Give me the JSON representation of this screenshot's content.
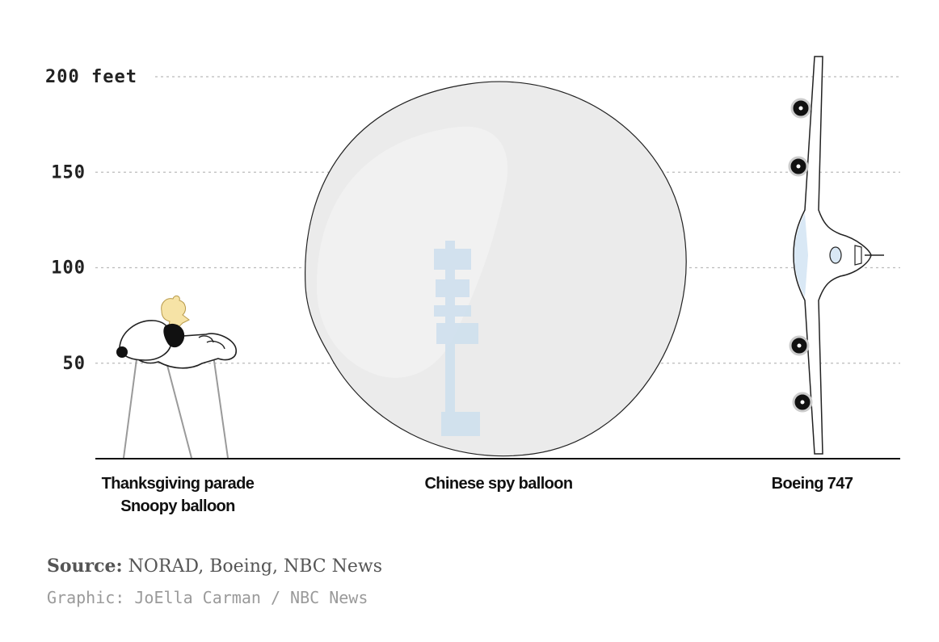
{
  "chart_data": {
    "type": "bar",
    "title": "",
    "xlabel": "",
    "ylabel": "",
    "ylim": [
      0,
      200
    ],
    "yticks": [
      {
        "value": 50,
        "label": "50"
      },
      {
        "value": 100,
        "label": "100"
      },
      {
        "value": 150,
        "label": "150"
      },
      {
        "value": 200,
        "label": "200 feet"
      }
    ],
    "grid": true,
    "categories": [
      "Thanksgiving parade Snoopy balloon",
      "Chinese spy balloon",
      "Boeing 747"
    ],
    "category_lines": [
      [
        "Thanksgiving parade",
        "Snoopy balloon"
      ],
      [
        "Chinese spy balloon"
      ],
      [
        "Boeing 747"
      ]
    ],
    "values": [
      84,
      200,
      211
    ],
    "colors": {
      "balloon_fill": "#ebebeb",
      "payload": "#cfe0ee",
      "plane_glass": "#d9e8f5",
      "woodstock": "#f6e3a6",
      "axis": "#111111",
      "grid": "#bbbbbb"
    }
  },
  "footer": {
    "source_label": "Source:",
    "source_text": "NORAD, Boeing, NBC News",
    "credit": "Graphic: JoElla Carman / NBC News"
  }
}
